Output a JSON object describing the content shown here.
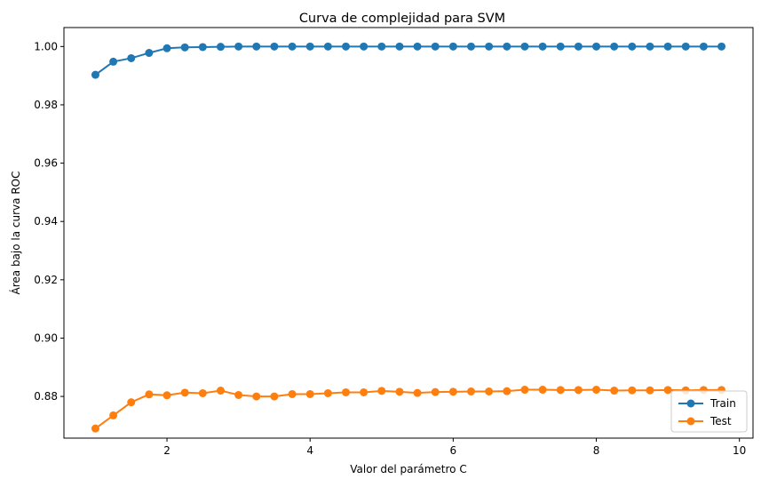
{
  "chart_data": {
    "type": "line",
    "title": "Curva de complejidad para SVM",
    "xlabel": "Valor del parámetro C",
    "ylabel": "Área bajo la curva ROC",
    "xlim": [
      0.56,
      10.19
    ],
    "ylim": [
      0.8657,
      1.0065
    ],
    "xticks": [
      2,
      4,
      6,
      8,
      10
    ],
    "xtick_labels": [
      "2",
      "4",
      "6",
      "8",
      "10"
    ],
    "yticks": [
      0.88,
      0.9,
      0.92,
      0.94,
      0.96,
      0.98,
      1.0
    ],
    "ytick_labels": [
      "0.88",
      "0.90",
      "0.92",
      "0.94",
      "0.96",
      "0.98",
      "1.00"
    ],
    "grid": false,
    "legend_position": "lower-right",
    "x": [
      1.0,
      1.25,
      1.5,
      1.75,
      2.0,
      2.25,
      2.5,
      2.75,
      3.0,
      3.25,
      3.5,
      3.75,
      4.0,
      4.25,
      4.5,
      4.75,
      5.0,
      5.25,
      5.5,
      5.75,
      6.0,
      6.25,
      6.5,
      6.75,
      7.0,
      7.25,
      7.5,
      7.75,
      8.0,
      8.25,
      8.5,
      8.75,
      9.0,
      9.25,
      9.5,
      9.75
    ],
    "series": [
      {
        "name": "Train",
        "color": "#1f77b4",
        "marker": "circle",
        "values": [
          0.9903,
          0.9948,
          0.996,
          0.9978,
          0.9994,
          0.9997,
          0.9998,
          0.9999,
          1.0,
          1.0,
          1.0,
          1.0,
          1.0,
          1.0,
          1.0,
          1.0,
          1.0,
          1.0,
          1.0,
          1.0,
          1.0,
          1.0,
          1.0,
          1.0,
          1.0,
          1.0,
          1.0,
          1.0,
          1.0,
          1.0,
          1.0,
          1.0,
          1.0,
          1.0,
          1.0,
          1.0
        ]
      },
      {
        "name": "Test",
        "color": "#ff7f0e",
        "marker": "circle",
        "values": [
          0.869,
          0.8735,
          0.878,
          0.8807,
          0.8804,
          0.8813,
          0.8811,
          0.882,
          0.8805,
          0.88,
          0.88,
          0.8808,
          0.8808,
          0.8811,
          0.8814,
          0.8814,
          0.8819,
          0.8816,
          0.8812,
          0.8815,
          0.8816,
          0.8817,
          0.8817,
          0.8818,
          0.8823,
          0.8823,
          0.8822,
          0.8822,
          0.8823,
          0.882,
          0.8821,
          0.8821,
          0.8822,
          0.8821,
          0.8822,
          0.8822
        ]
      }
    ]
  }
}
